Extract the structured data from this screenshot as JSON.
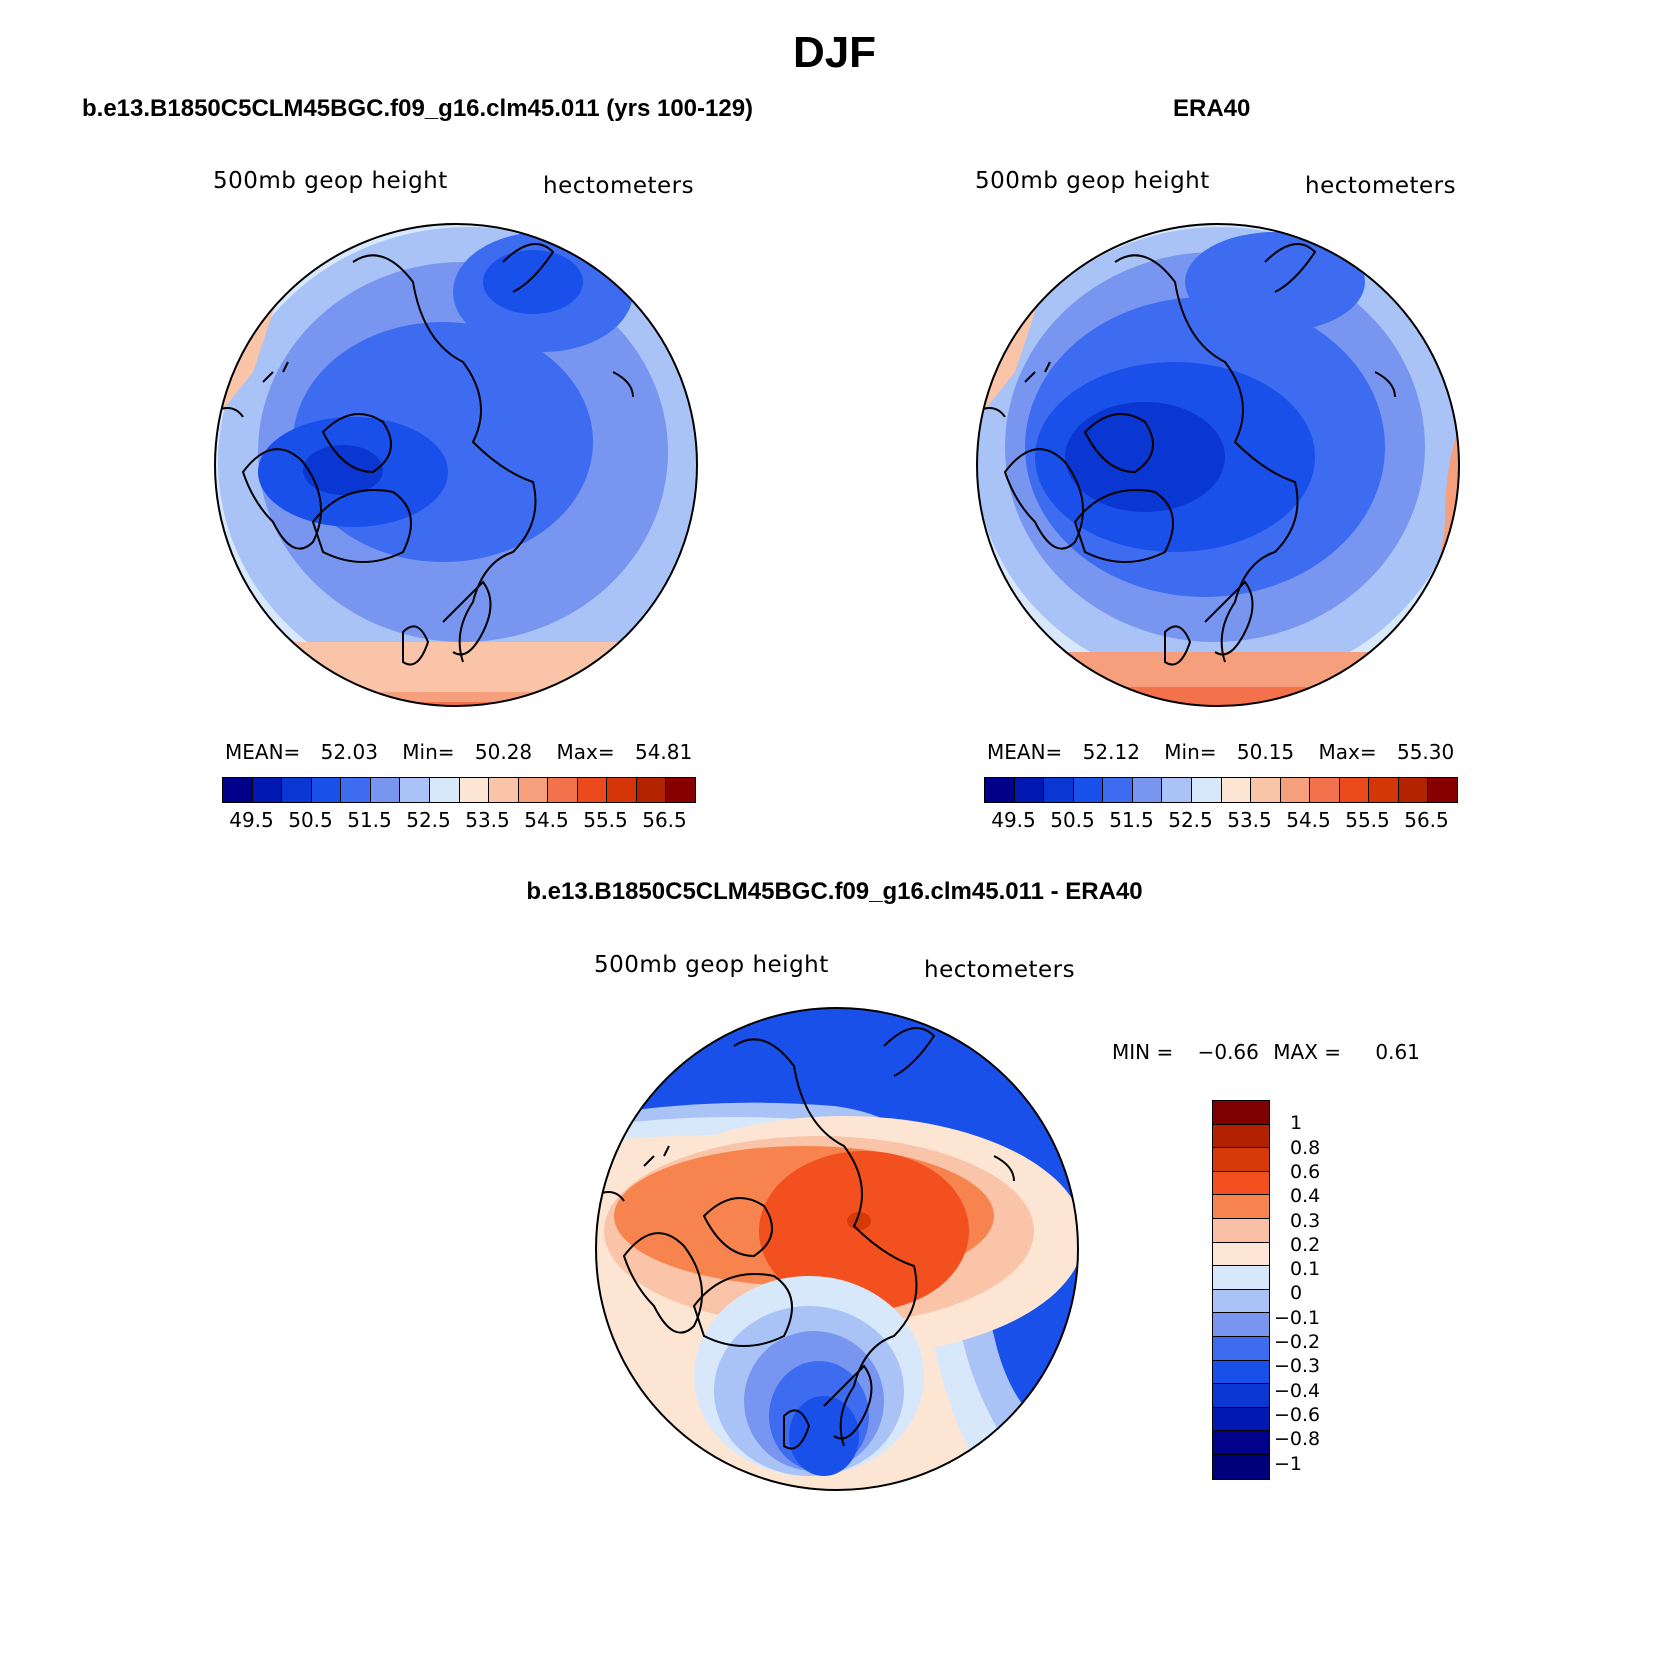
{
  "title": "DJF",
  "panels": {
    "model": {
      "title": "b.e13.B1850C5CLM45BGC.f09_g16.clm45.011 (yrs 100-129)",
      "variable": "500mb geop height",
      "units": "hectometers",
      "mean_label": "MEAN=",
      "mean": "52.03",
      "min_label": "Min=",
      "min": "50.28",
      "max_label": "Max=",
      "max": "54.81"
    },
    "obs": {
      "title": "ERA40",
      "variable": "500mb geop height",
      "units": "hectometers",
      "mean_label": "MEAN=",
      "mean": "52.12",
      "min_label": "Min=",
      "min": "50.15",
      "max_label": "Max=",
      "max": "55.30"
    },
    "diff": {
      "title": "b.e13.B1850C5CLM45BGC.f09_g16.clm45.011 - ERA40",
      "variable": "500mb geop height",
      "units": "hectometers",
      "min_label": "MIN =",
      "min": "−0.66",
      "max_label": "MAX =",
      "max": "0.61"
    }
  },
  "colorbar_abs": {
    "colors": [
      "#00008b",
      "#0019b0",
      "#0a36d2",
      "#1a50ea",
      "#3d6cf0",
      "#7896ef",
      "#a9c3f7",
      "#d8e8fb",
      "#fde5d4",
      "#f9c4a8",
      "#f69f7d",
      "#f3724c",
      "#eb4a1c",
      "#d43608",
      "#b32300",
      "#880000"
    ],
    "labels": [
      "49.5",
      "50.5",
      "51.5",
      "52.5",
      "53.5",
      "54.5",
      "55.5",
      "56.5"
    ]
  },
  "colorbar_diff": {
    "colors": [
      "#7f0000",
      "#b22200",
      "#d73a08",
      "#f2501e",
      "#f7834f",
      "#f9c0a5",
      "#fde6d6",
      "#d8e8fb",
      "#a9c3f7",
      "#7896ef",
      "#3d6cf0",
      "#1a50ea",
      "#0a36d2",
      "#0019b0",
      "#00008b",
      "#00007a"
    ],
    "labels": [
      "1",
      "0.8",
      "0.6",
      "0.4",
      "0.3",
      "0.2",
      "0.1",
      "0",
      "−0.1",
      "−0.2",
      "−0.3",
      "−0.4",
      "−0.6",
      "−0.8",
      "−1"
    ]
  }
}
